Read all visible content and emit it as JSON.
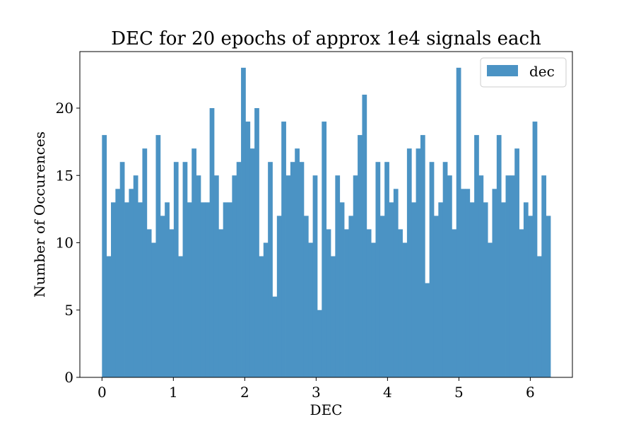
{
  "chart_data": {
    "type": "bar",
    "subtype": "histogram",
    "title": "DEC for 20 epochs of approx 1e4 signals each",
    "xlabel": "DEC",
    "ylabel": "Number of Occurences",
    "xlim": [
      -0.31,
      6.59
    ],
    "ylim": [
      0,
      24.2
    ],
    "xticks": [
      0,
      1,
      2,
      3,
      4,
      5,
      6
    ],
    "yticks": [
      0,
      5,
      10,
      15,
      20
    ],
    "legend": {
      "position": "top-right",
      "entries": [
        "dec"
      ]
    },
    "grid": false,
    "bar_color": "#4b93c4",
    "series": [
      {
        "name": "dec",
        "bin_start": 0.0,
        "bin_end": 6.283,
        "values": [
          18,
          9,
          13,
          14,
          16,
          13,
          14,
          15,
          13,
          17,
          11,
          10,
          18,
          12,
          13,
          11,
          16,
          9,
          16,
          13,
          17,
          15,
          13,
          13,
          20,
          15,
          11,
          13,
          13,
          15,
          16,
          23,
          19,
          17,
          20,
          9,
          10,
          16,
          6,
          12,
          19,
          15,
          16,
          17,
          16,
          12,
          10,
          15,
          5,
          19,
          11,
          9,
          15,
          13,
          11,
          12,
          15,
          18,
          21,
          11,
          10,
          16,
          12,
          16,
          13,
          14,
          11,
          10,
          17,
          13,
          17,
          18,
          7,
          16,
          12,
          13,
          16,
          15,
          11,
          23,
          14,
          14,
          13,
          18,
          15,
          13,
          10,
          14,
          18,
          13,
          15,
          15,
          17,
          11,
          13,
          12,
          19,
          9,
          15,
          12
        ]
      }
    ]
  }
}
